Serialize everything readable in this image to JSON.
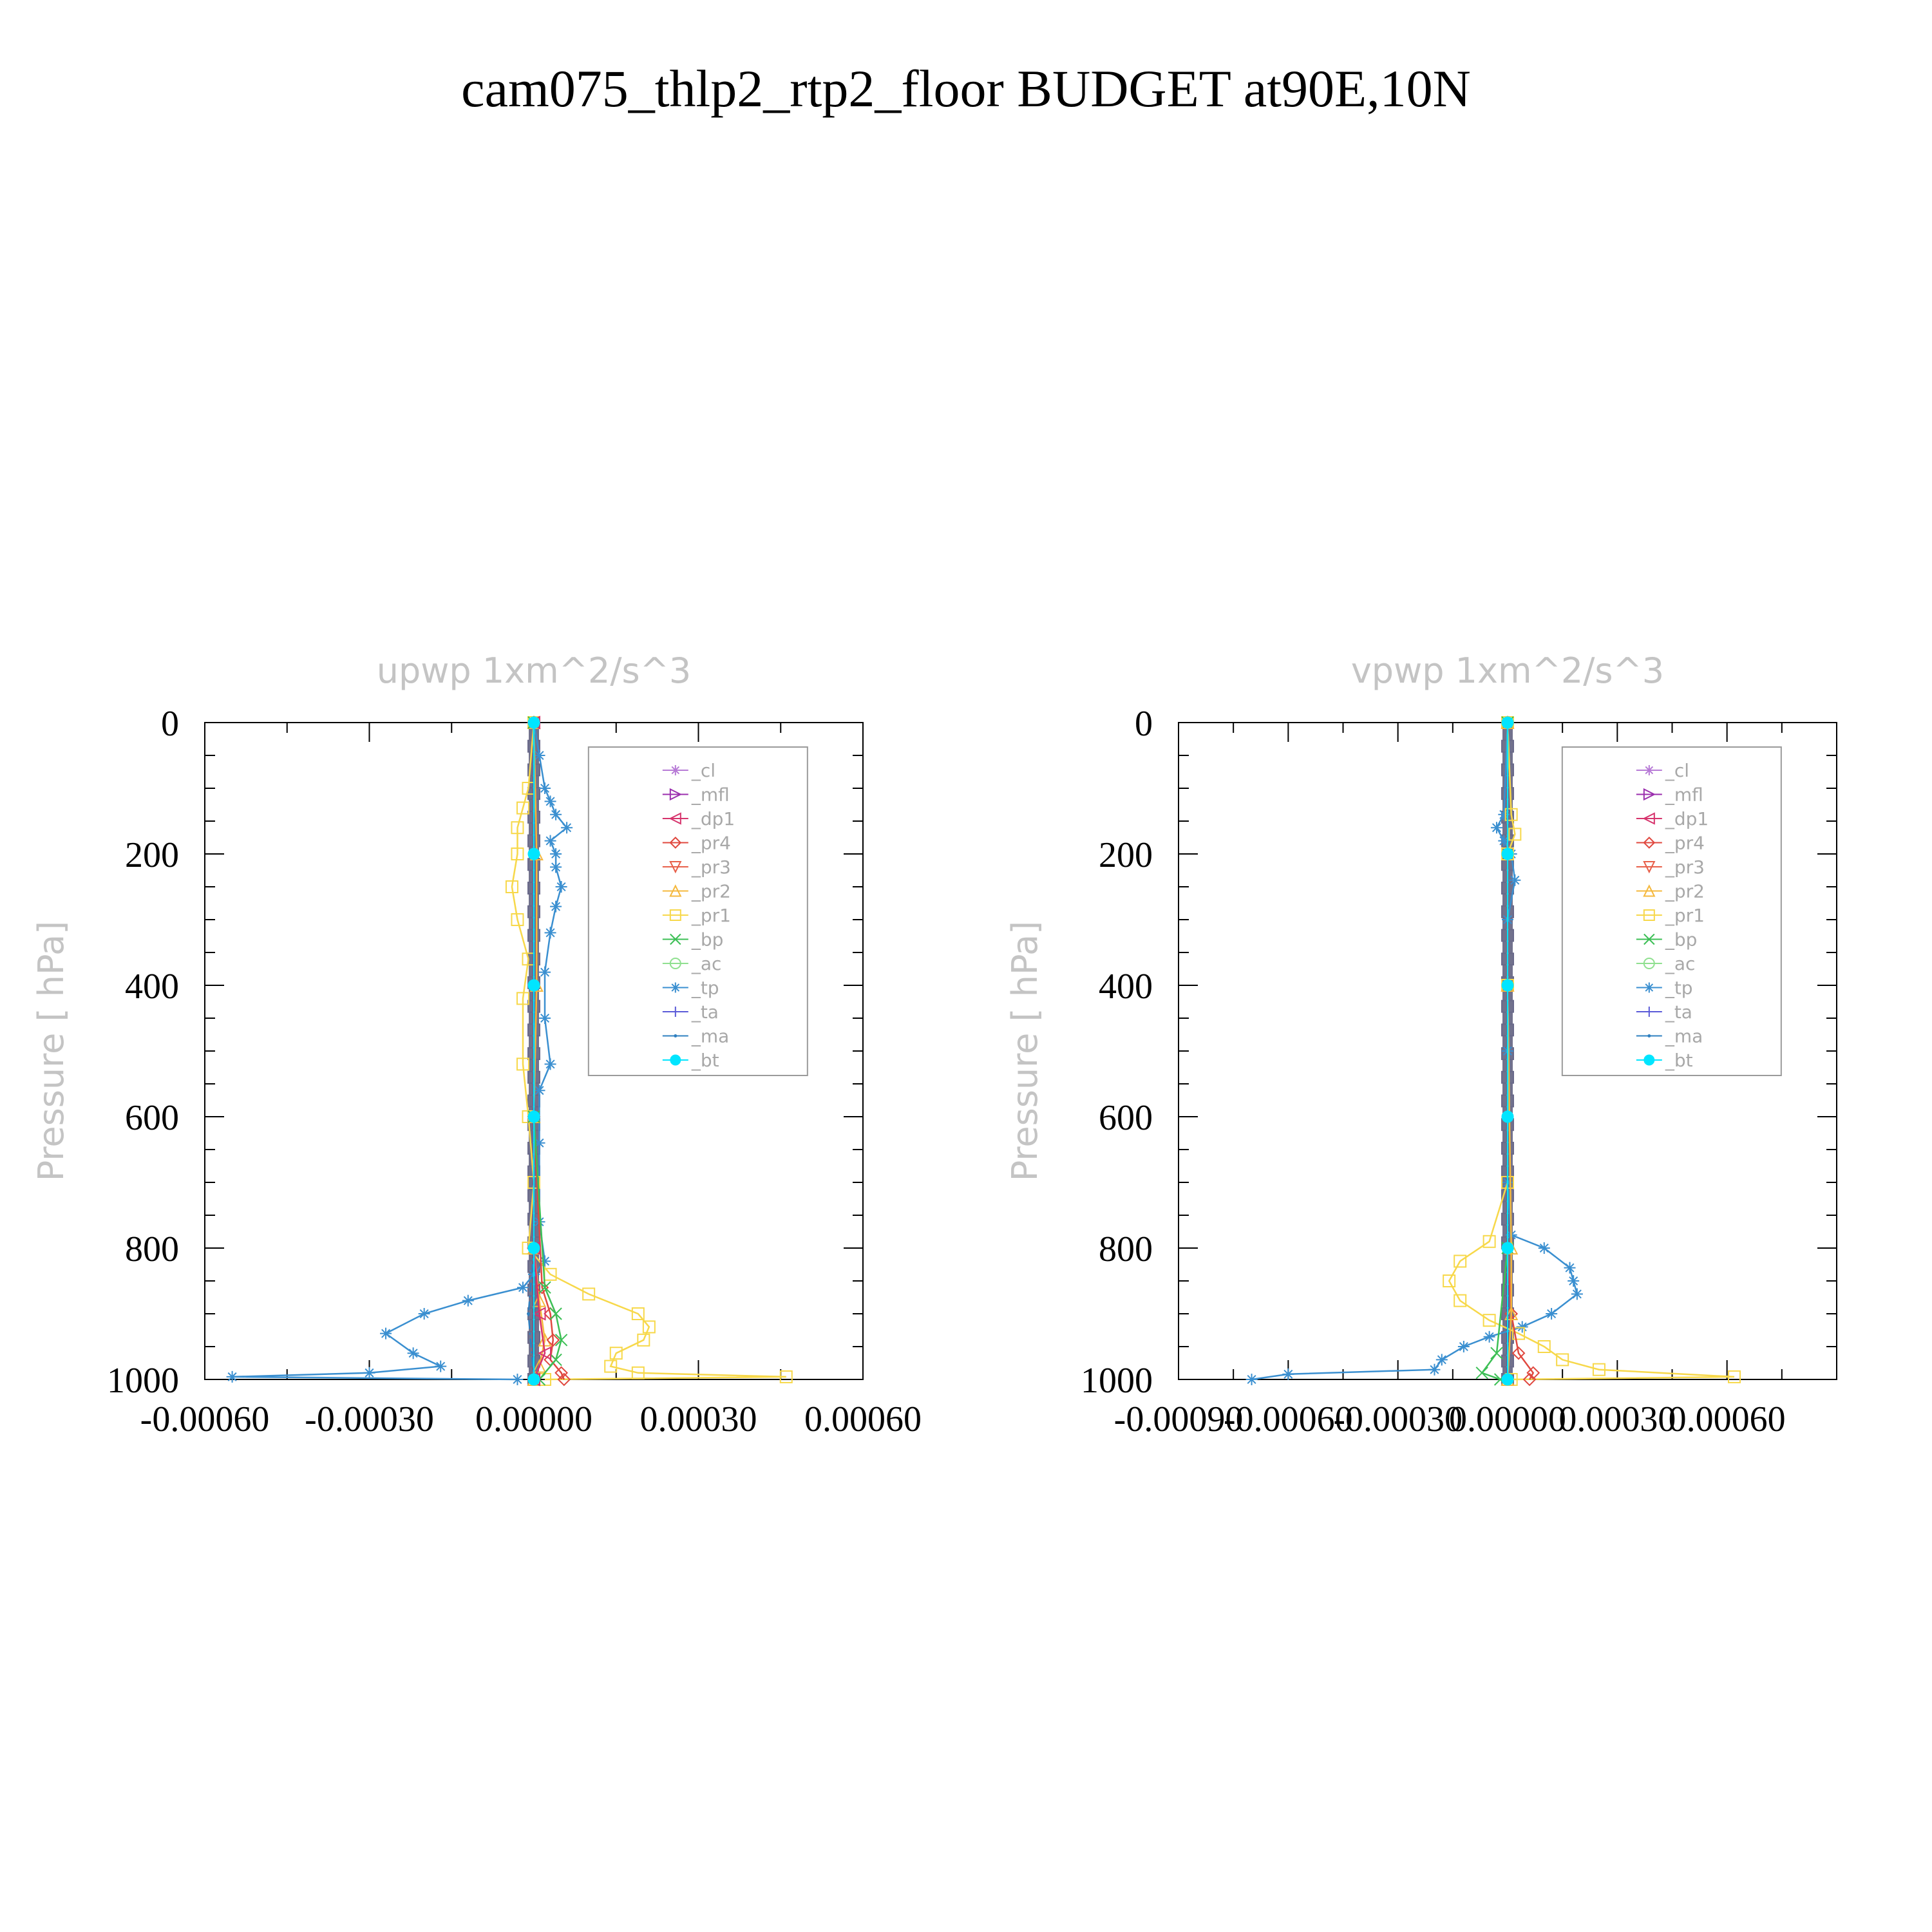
{
  "figure": {
    "title": "cam075_thlp2_rtp2_floor  BUDGET at90E,10N"
  },
  "colors": {
    "_cl": "#b77ad6",
    "_mfl": "#9b2fae",
    "_dp1": "#d6336c",
    "_pr4": "#e0483f",
    "_pr3": "#e8604a",
    "_pr2": "#f5b83d",
    "_pr1": "#f7d84a",
    "_bp": "#3cbf55",
    "_ac": "#8fe08f",
    "_tp": "#3a8fd0",
    "_ta": "#5a5ad8",
    "_ma": "#2f80c0",
    "_bt": "#00e5ff",
    "axes": "#000000",
    "legend_box": "#9a9a9a",
    "faint_text": "#c4c4c4"
  },
  "legend": [
    {
      "key": "_cl",
      "label": "_cl",
      "marker": "star"
    },
    {
      "key": "_mfl",
      "label": "_mfl",
      "marker": "tri-right"
    },
    {
      "key": "_dp1",
      "label": "_dp1",
      "marker": "tri-left"
    },
    {
      "key": "_pr4",
      "label": "_pr4",
      "marker": "diamond"
    },
    {
      "key": "_pr3",
      "label": "_pr3",
      "marker": "tri-down"
    },
    {
      "key": "_pr2",
      "label": "_pr2",
      "marker": "tri-up"
    },
    {
      "key": "_pr1",
      "label": "_pr1",
      "marker": "square"
    },
    {
      "key": "_bp",
      "label": "_bp",
      "marker": "x"
    },
    {
      "key": "_ac",
      "label": "_ac",
      "marker": "circle"
    },
    {
      "key": "_tp",
      "label": "_tp",
      "marker": "asterisk"
    },
    {
      "key": "_ta",
      "label": "_ta",
      "marker": "plus"
    },
    {
      "key": "_ma",
      "label": "_ma",
      "marker": "dot"
    },
    {
      "key": "_bt",
      "label": "_bt",
      "marker": "filled-circle"
    }
  ],
  "chart_data": [
    {
      "type": "line",
      "title": "upwp   1xm^2/s^3",
      "ylabel": "Pressure [ hPa]",
      "xlabel": "",
      "xlim": [
        -0.0006,
        0.0006
      ],
      "ylim": [
        1000,
        0
      ],
      "xticks": [
        -0.0006,
        -0.0003,
        0.0,
        0.0003,
        0.0006
      ],
      "xtick_labels": [
        "-0.00060",
        "-0.00030",
        "0.00000",
        "0.00030",
        "0.00060"
      ],
      "yticks": [
        0,
        200,
        400,
        600,
        800,
        1000
      ],
      "ytick_labels": [
        "0",
        "200",
        "400",
        "600",
        "800",
        "1000"
      ],
      "legend_position": "top-right",
      "series": [
        {
          "name": "_tp",
          "y": [
            0,
            50,
            100,
            120,
            140,
            160,
            180,
            200,
            220,
            250,
            280,
            320,
            380,
            450,
            520,
            560,
            640,
            760,
            820,
            840,
            860,
            880,
            900,
            930,
            960,
            980,
            990,
            996,
            1000
          ],
          "x": [
            0,
            1e-05,
            2e-05,
            3e-05,
            4e-05,
            6e-05,
            3e-05,
            4e-05,
            4e-05,
            5e-05,
            4e-05,
            3e-05,
            2e-05,
            2e-05,
            3e-05,
            1e-05,
            1e-05,
            1e-05,
            2e-05,
            0.0,
            -2e-05,
            -0.00012,
            -0.0002,
            -0.00027,
            -0.00022,
            -0.00017,
            -0.0003,
            -0.00055,
            -3e-05
          ]
        },
        {
          "name": "_pr1",
          "y": [
            0,
            100,
            130,
            160,
            200,
            250,
            300,
            360,
            420,
            520,
            600,
            700,
            800,
            840,
            870,
            900,
            920,
            940,
            960,
            980,
            990,
            996,
            1000
          ],
          "x": [
            0,
            -1e-05,
            -2e-05,
            -3e-05,
            -3e-05,
            -4e-05,
            -3e-05,
            -1e-05,
            -2e-05,
            -2e-05,
            -1e-05,
            0.0,
            -1e-05,
            3e-05,
            0.0001,
            0.00019,
            0.00021,
            0.0002,
            0.00015,
            0.00014,
            0.00019,
            0.00046,
            2e-05
          ]
        },
        {
          "name": "_pr2",
          "y": [
            0,
            200,
            400,
            600,
            800,
            880,
            940,
            980,
            1000
          ],
          "x": [
            0,
            5e-06,
            5e-06,
            0.0,
            0.0,
            1e-05,
            2e-05,
            1e-05,
            0.0
          ]
        },
        {
          "name": "_pr4",
          "y": [
            0,
            600,
            860,
            900,
            940,
            970,
            990,
            1000
          ],
          "x": [
            0,
            0.0,
            1.5e-05,
            3e-05,
            3.5e-05,
            3e-05,
            5e-05,
            5.5e-05
          ]
        },
        {
          "name": "_bp",
          "y": [
            0,
            600,
            860,
            900,
            940,
            970,
            1000
          ],
          "x": [
            0,
            0.0,
            2e-05,
            4e-05,
            5e-05,
            4e-05,
            1e-05
          ]
        },
        {
          "name": "_dp1",
          "y": [
            0,
            800,
            900,
            960,
            1000
          ],
          "x": [
            0,
            0.0,
            1e-05,
            2e-05,
            0.0
          ]
        },
        {
          "name": "_ma",
          "y": [
            0,
            800,
            900,
            1000
          ],
          "x": [
            0,
            0.0,
            -1e-05,
            0.0
          ]
        },
        {
          "name": "_bt",
          "y": [
            0,
            200,
            400,
            600,
            800,
            1000
          ],
          "x": [
            0,
            0,
            0,
            0,
            0,
            0
          ]
        }
      ]
    },
    {
      "type": "line",
      "title": "vpwp   1xm^2/s^3",
      "ylabel": "Pressure [ hPa]",
      "xlabel": "",
      "xlim": [
        -0.0009,
        0.0009
      ],
      "ylim": [
        1000,
        0
      ],
      "xticks": [
        -0.0009,
        -0.0006,
        -0.0003,
        0.0,
        0.0003,
        0.0006
      ],
      "xtick_labels": [
        "-0.00090",
        "-0.00060",
        "-0.00030",
        "0.00000",
        "0.00030",
        "0.00060"
      ],
      "yticks": [
        0,
        200,
        400,
        600,
        800,
        1000
      ],
      "ytick_labels": [
        "0",
        "200",
        "400",
        "600",
        "800",
        "1000"
      ],
      "legend_position": "top-right",
      "series": [
        {
          "name": "_tp",
          "y": [
            0,
            140,
            160,
            180,
            200,
            240,
            300,
            500,
            700,
            780,
            800,
            830,
            850,
            870,
            900,
            920,
            935,
            950,
            970,
            985,
            992,
            1000
          ],
          "x": [
            0,
            -1e-05,
            -3e-05,
            -1e-05,
            1e-05,
            2e-05,
            0.0,
            0.0,
            0.0,
            1e-05,
            0.0001,
            0.00017,
            0.00018,
            0.00019,
            0.00012,
            4e-05,
            -5e-05,
            -0.00012,
            -0.00018,
            -0.0002,
            -0.0006,
            -0.0007
          ]
        },
        {
          "name": "_pr1",
          "y": [
            0,
            140,
            170,
            200,
            400,
            700,
            790,
            820,
            850,
            880,
            910,
            930,
            950,
            970,
            985,
            996,
            1000
          ],
          "x": [
            0,
            1e-05,
            2e-05,
            0.0,
            0.0,
            0.0,
            -5e-05,
            -0.00013,
            -0.00016,
            -0.00013,
            -5e-05,
            3e-05,
            0.0001,
            0.00015,
            0.00025,
            0.00062,
            1e-05
          ]
        },
        {
          "name": "_pr4",
          "y": [
            0,
            800,
            900,
            960,
            990,
            1000
          ],
          "x": [
            0,
            0.0,
            1e-05,
            3e-05,
            7e-05,
            6e-05
          ]
        },
        {
          "name": "_bp",
          "y": [
            0,
            800,
            960,
            990,
            1000
          ],
          "x": [
            0,
            0.0,
            -3e-05,
            -7e-05,
            -2e-05
          ]
        },
        {
          "name": "_pr2",
          "y": [
            0,
            400,
            800,
            900,
            1000
          ],
          "x": [
            0,
            0.0,
            1e-05,
            1e-05,
            0.0
          ]
        },
        {
          "name": "_bt",
          "y": [
            0,
            200,
            400,
            600,
            800,
            1000
          ],
          "x": [
            0,
            0,
            0,
            0,
            0,
            0
          ]
        }
      ]
    }
  ]
}
